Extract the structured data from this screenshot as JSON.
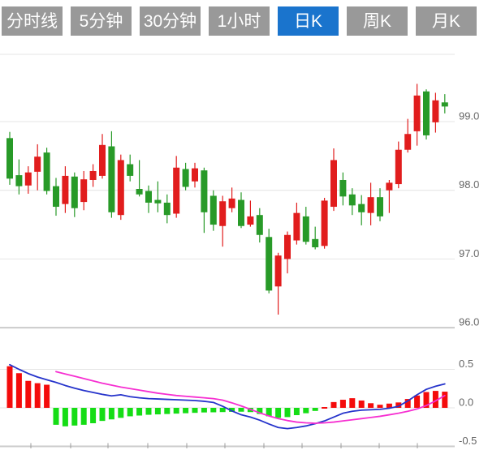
{
  "tabs": {
    "items": [
      {
        "label": "分时线",
        "active": false
      },
      {
        "label": "5分钟",
        "active": false
      },
      {
        "label": "30分钟",
        "active": false
      },
      {
        "label": "1小时",
        "active": false
      },
      {
        "label": "日K",
        "active": true
      },
      {
        "label": "周K",
        "active": false
      },
      {
        "label": "月K",
        "active": false
      }
    ]
  },
  "colors": {
    "tab_bg": "#999999",
    "tab_active": "#1a74cd",
    "tab_text": "#ffffff",
    "candle_up": "#e11d1d",
    "candle_down": "#289a28",
    "hist_up": "#f40b0b",
    "hist_down": "#15dd15",
    "dif_line": "#2533cb",
    "dea_line": "#f62fd1",
    "grid": "#e4e4e4",
    "axis": "#cbcbcb",
    "tick": "#9c9c9c",
    "axis_text": "#666666"
  },
  "chart_data": {
    "type": "candlestick+macd",
    "main_panel": {
      "yticks": [
        "99.0",
        "98.0",
        "97.0",
        "96.0"
      ],
      "ytick_values": [
        99.0,
        98.0,
        97.0,
        96.0
      ],
      "ylim": [
        95.95,
        99.98
      ],
      "grid": true,
      "candle_format": "[open, high, low, close]; close>open = red(up), close<open = green(down)",
      "candles": [
        [
          98.76,
          98.85,
          98.08,
          98.17
        ],
        [
          98.22,
          98.45,
          97.94,
          98.06
        ],
        [
          98.07,
          98.35,
          97.95,
          98.26
        ],
        [
          98.27,
          98.67,
          98.0,
          98.49
        ],
        [
          98.55,
          98.62,
          97.94,
          97.99
        ],
        [
          98.06,
          98.18,
          97.63,
          97.76
        ],
        [
          97.8,
          98.35,
          97.67,
          98.21
        ],
        [
          98.2,
          98.26,
          97.61,
          97.74
        ],
        [
          97.83,
          98.28,
          97.71,
          98.16
        ],
        [
          98.15,
          98.38,
          98.05,
          98.28
        ],
        [
          98.21,
          98.82,
          98.17,
          98.66
        ],
        [
          98.64,
          98.86,
          97.6,
          97.68
        ],
        [
          97.64,
          98.52,
          97.57,
          98.44
        ],
        [
          98.38,
          98.52,
          98.13,
          98.21
        ],
        [
          98.02,
          98.44,
          97.91,
          97.94
        ],
        [
          97.99,
          98.07,
          97.67,
          97.82
        ],
        [
          97.86,
          98.13,
          97.68,
          97.81
        ],
        [
          97.82,
          97.94,
          97.52,
          97.64
        ],
        [
          97.66,
          98.5,
          97.6,
          98.33
        ],
        [
          98.31,
          98.4,
          98.0,
          98.05
        ],
        [
          98.13,
          98.4,
          98.04,
          98.32
        ],
        [
          98.29,
          98.33,
          97.38,
          97.68
        ],
        [
          97.92,
          98.0,
          97.41,
          97.5
        ],
        [
          97.48,
          97.92,
          97.18,
          97.84
        ],
        [
          97.74,
          98.04,
          97.68,
          97.88
        ],
        [
          97.86,
          97.97,
          97.45,
          97.48
        ],
        [
          97.5,
          97.85,
          97.47,
          97.62
        ],
        [
          97.64,
          97.74,
          97.24,
          97.35
        ],
        [
          97.32,
          97.44,
          96.5,
          96.54
        ],
        [
          96.6,
          97.09,
          96.19,
          97.05
        ],
        [
          97.0,
          97.4,
          96.79,
          97.35
        ],
        [
          97.27,
          97.82,
          97.21,
          97.67
        ],
        [
          97.62,
          97.76,
          97.21,
          97.25
        ],
        [
          97.29,
          97.47,
          97.14,
          97.17
        ],
        [
          97.19,
          97.89,
          97.15,
          97.85
        ],
        [
          97.76,
          98.61,
          97.7,
          98.44
        ],
        [
          98.15,
          98.26,
          97.78,
          97.91
        ],
        [
          97.94,
          98.03,
          97.64,
          97.78
        ],
        [
          97.8,
          97.93,
          97.49,
          97.68
        ],
        [
          97.67,
          98.11,
          97.49,
          97.9
        ],
        [
          97.9,
          98.03,
          97.55,
          97.62
        ],
        [
          98.0,
          98.15,
          97.67,
          98.11
        ],
        [
          98.09,
          98.71,
          98.03,
          98.59
        ],
        [
          98.59,
          99.04,
          98.55,
          98.82
        ],
        [
          98.86,
          99.55,
          98.65,
          99.38
        ],
        [
          99.44,
          99.47,
          98.74,
          98.8
        ],
        [
          98.99,
          99.42,
          98.84,
          99.31
        ],
        [
          99.28,
          99.4,
          99.12,
          99.22
        ]
      ]
    },
    "macd_panel": {
      "yticks": [
        "0.5",
        "0.0",
        "-0.5"
      ],
      "ytick_values": [
        0.5,
        0.0,
        -0.5
      ],
      "ylim": [
        -0.5,
        0.5
      ],
      "grid": true,
      "histogram": [
        0.54,
        0.45,
        0.35,
        0.32,
        0.3,
        -0.22,
        -0.24,
        -0.23,
        -0.22,
        -0.2,
        -0.17,
        -0.15,
        -0.13,
        -0.11,
        -0.1,
        -0.09,
        -0.085,
        -0.08,
        -0.075,
        -0.07,
        -0.065,
        -0.06,
        -0.058,
        -0.055,
        -0.052,
        -0.05,
        -0.055,
        -0.08,
        -0.11,
        -0.13,
        -0.12,
        -0.095,
        -0.07,
        -0.04,
        0.01,
        0.075,
        0.105,
        0.125,
        0.095,
        0.06,
        0.04,
        0.055,
        0.07,
        0.115,
        0.16,
        0.205,
        0.22,
        0.21
      ],
      "dif": [
        0.56,
        0.5,
        0.445,
        0.4,
        0.365,
        0.33,
        0.29,
        0.255,
        0.225,
        0.2,
        0.175,
        0.155,
        0.17,
        0.145,
        0.13,
        0.12,
        0.115,
        0.11,
        0.105,
        0.1,
        0.095,
        0.085,
        0.07,
        0.02,
        -0.04,
        -0.09,
        -0.12,
        -0.16,
        -0.21,
        -0.255,
        -0.27,
        -0.255,
        -0.235,
        -0.205,
        -0.17,
        -0.12,
        -0.07,
        -0.045,
        -0.03,
        -0.025,
        -0.02,
        -0.005,
        0.02,
        0.09,
        0.17,
        0.24,
        0.28,
        0.31
      ],
      "dea": [
        null,
        null,
        null,
        null,
        null,
        0.47,
        0.44,
        0.41,
        0.38,
        0.35,
        0.32,
        0.295,
        0.27,
        0.25,
        0.23,
        0.21,
        0.19,
        0.175,
        0.16,
        0.15,
        0.14,
        0.13,
        0.12,
        0.1,
        0.065,
        0.025,
        -0.02,
        -0.065,
        -0.105,
        -0.14,
        -0.165,
        -0.185,
        -0.195,
        -0.2,
        -0.195,
        -0.185,
        -0.17,
        -0.155,
        -0.14,
        -0.125,
        -0.11,
        -0.09,
        -0.07,
        -0.045,
        -0.015,
        0.03,
        0.09,
        0.16
      ]
    }
  }
}
